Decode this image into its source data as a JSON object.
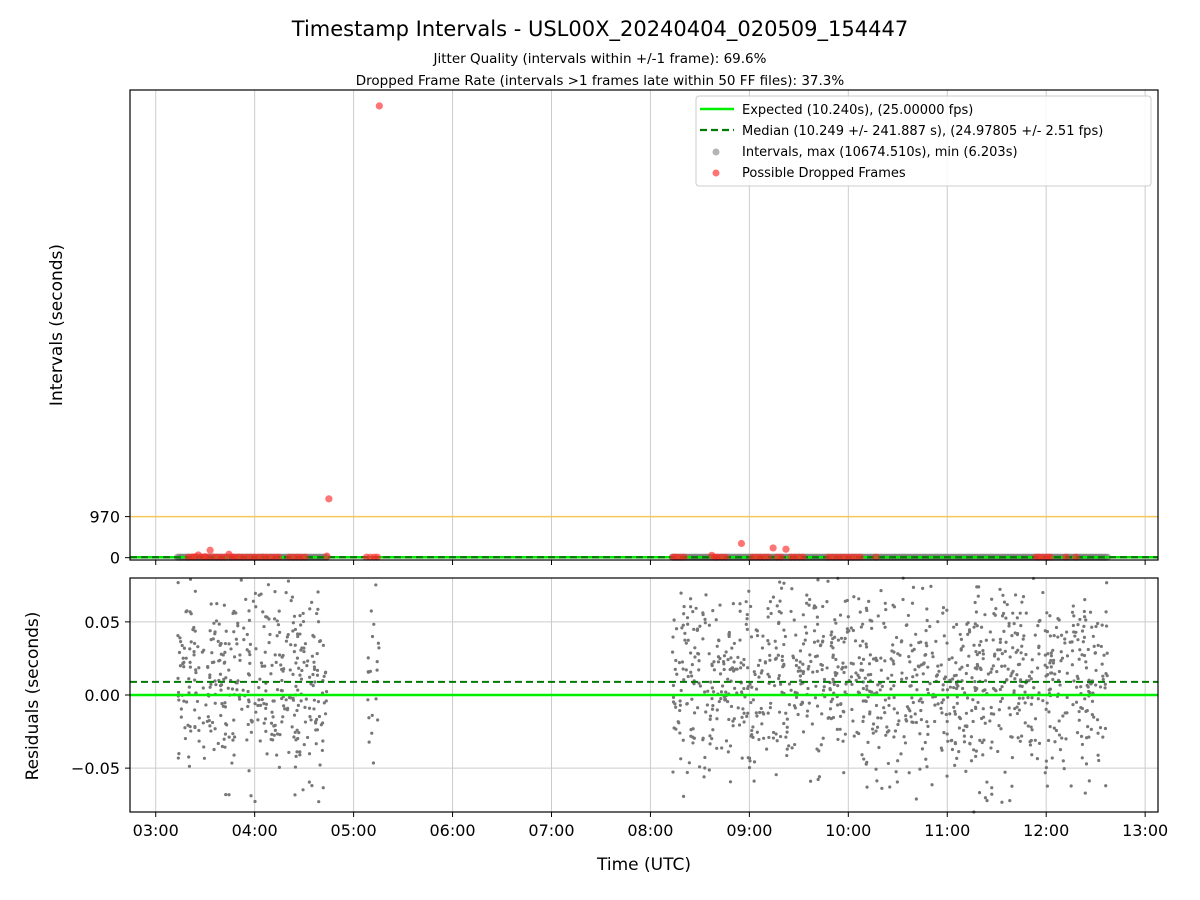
{
  "title": "Timestamp Intervals - USL00X_20240404_020509_154447",
  "subtitle_lines": [
    "Jitter Quality (intervals within +/-1 frame): 69.6%",
    "Dropped Frame Rate (intervals >1 frames late within 50 FF files): 37.3%"
  ],
  "colors": {
    "expected": "#00ee00",
    "median": "#007a00",
    "threshold": "#f7c65a",
    "intervals": "#777777",
    "dropped": "#ff2a2a",
    "grid": "#cccccc"
  },
  "chart_data": [
    {
      "type": "scatter",
      "panel": "top",
      "ylabel": "Intervals (seconds)",
      "ylim": [
        -55,
        11050
      ],
      "yticks": [
        0,
        970
      ],
      "ytick_labels": [
        "0",
        "970"
      ],
      "xlim_hours": [
        2.74,
        13.13
      ],
      "grid": "vertical",
      "legend_placement": "top-right",
      "legend": [
        "Expected (10.240s), (25.00000 fps)",
        "Median (10.249 +/- 241.887 s), (24.97805 +/- 2.51 fps)",
        "Intervals, max (10674.510s), min (6.203s)",
        "Possible Dropped Frames"
      ],
      "expected_interval": 10.24,
      "median_interval": 10.249,
      "threshold_interval": 970,
      "interval_segments_hours": [
        [
          3.22,
          4.73
        ],
        [
          8.22,
          12.62
        ]
      ],
      "dropped_frames": [
        {
          "x": 3.33,
          "y": 12
        },
        {
          "x": 3.37,
          "y": 15
        },
        {
          "x": 3.4,
          "y": 18
        },
        {
          "x": 3.43,
          "y": 65
        },
        {
          "x": 3.47,
          "y": 14
        },
        {
          "x": 3.5,
          "y": 22
        },
        {
          "x": 3.53,
          "y": 12
        },
        {
          "x": 3.55,
          "y": 175
        },
        {
          "x": 3.58,
          "y": 15
        },
        {
          "x": 3.62,
          "y": 13
        },
        {
          "x": 3.66,
          "y": 12
        },
        {
          "x": 3.7,
          "y": 12
        },
        {
          "x": 3.74,
          "y": 80
        },
        {
          "x": 3.77,
          "y": 13
        },
        {
          "x": 3.8,
          "y": 12
        },
        {
          "x": 3.84,
          "y": 14
        },
        {
          "x": 3.88,
          "y": 12
        },
        {
          "x": 3.92,
          "y": 12
        },
        {
          "x": 3.96,
          "y": 13
        },
        {
          "x": 4.0,
          "y": 12
        },
        {
          "x": 4.04,
          "y": 12
        },
        {
          "x": 4.08,
          "y": 14
        },
        {
          "x": 4.12,
          "y": 12
        },
        {
          "x": 4.16,
          "y": 12
        },
        {
          "x": 4.2,
          "y": 12
        },
        {
          "x": 4.24,
          "y": 12
        },
        {
          "x": 4.35,
          "y": 12
        },
        {
          "x": 4.39,
          "y": 12
        },
        {
          "x": 4.43,
          "y": 12
        },
        {
          "x": 4.47,
          "y": 12
        },
        {
          "x": 4.51,
          "y": 12
        },
        {
          "x": 4.73,
          "y": 38
        },
        {
          "x": 4.75,
          "y": 1390
        },
        {
          "x": 5.13,
          "y": 12
        },
        {
          "x": 5.17,
          "y": 12
        },
        {
          "x": 5.21,
          "y": 12
        },
        {
          "x": 5.24,
          "y": 12
        },
        {
          "x": 5.26,
          "y": 10674.51
        },
        {
          "x": 8.23,
          "y": 12
        },
        {
          "x": 8.26,
          "y": 12
        },
        {
          "x": 8.3,
          "y": 12
        },
        {
          "x": 8.34,
          "y": 12
        },
        {
          "x": 8.62,
          "y": 55
        },
        {
          "x": 8.65,
          "y": 12
        },
        {
          "x": 8.68,
          "y": 12
        },
        {
          "x": 8.72,
          "y": 12
        },
        {
          "x": 8.76,
          "y": 12
        },
        {
          "x": 8.92,
          "y": 335
        },
        {
          "x": 9.03,
          "y": 12
        },
        {
          "x": 9.07,
          "y": 12
        },
        {
          "x": 9.11,
          "y": 12
        },
        {
          "x": 9.15,
          "y": 12
        },
        {
          "x": 9.19,
          "y": 12
        },
        {
          "x": 9.24,
          "y": 230
        },
        {
          "x": 9.28,
          "y": 12
        },
        {
          "x": 9.32,
          "y": 12
        },
        {
          "x": 9.37,
          "y": 200
        },
        {
          "x": 9.42,
          "y": 12
        },
        {
          "x": 9.46,
          "y": 12
        },
        {
          "x": 9.5,
          "y": 12
        },
        {
          "x": 9.54,
          "y": 12
        },
        {
          "x": 9.8,
          "y": 12
        },
        {
          "x": 9.84,
          "y": 12
        },
        {
          "x": 9.88,
          "y": 12
        },
        {
          "x": 9.92,
          "y": 12
        },
        {
          "x": 9.96,
          "y": 12
        },
        {
          "x": 10.0,
          "y": 12
        },
        {
          "x": 10.04,
          "y": 12
        },
        {
          "x": 10.08,
          "y": 12
        },
        {
          "x": 10.12,
          "y": 12
        },
        {
          "x": 10.28,
          "y": 12
        },
        {
          "x": 11.9,
          "y": 12
        },
        {
          "x": 11.93,
          "y": 12
        },
        {
          "x": 11.97,
          "y": 12
        },
        {
          "x": 12.01,
          "y": 12
        },
        {
          "x": 12.04,
          "y": 12
        },
        {
          "x": 12.2,
          "y": 12
        },
        {
          "x": 12.3,
          "y": 12
        }
      ]
    },
    {
      "type": "scatter",
      "panel": "bottom",
      "xlabel": "Time (UTC)",
      "ylabel": "Residuals (seconds)",
      "ylim": [
        -0.08,
        0.08
      ],
      "yticks": [
        -0.05,
        0.0,
        0.05
      ],
      "ytick_labels": [
        "−0.05",
        "0.00",
        "0.05"
      ],
      "xlim_hours": [
        2.74,
        13.13
      ],
      "xticks_hours": [
        3,
        4,
        5,
        6,
        7,
        8,
        9,
        10,
        11,
        12,
        13
      ],
      "xtick_labels": [
        "03:00",
        "04:00",
        "05:00",
        "06:00",
        "07:00",
        "08:00",
        "09:00",
        "10:00",
        "11:00",
        "12:00",
        "13:00"
      ],
      "grid": "both",
      "expected_residual": 0.0,
      "median_residual": 0.009,
      "residual_clusters": [
        {
          "x_range": [
            3.22,
            4.73
          ],
          "count": 420,
          "y_sd": 0.032
        },
        {
          "x_range": [
            5.13,
            5.26
          ],
          "count": 22,
          "y_sd": 0.03
        },
        {
          "x_range": [
            8.22,
            12.62
          ],
          "count": 1200,
          "y_sd": 0.034
        }
      ]
    }
  ]
}
